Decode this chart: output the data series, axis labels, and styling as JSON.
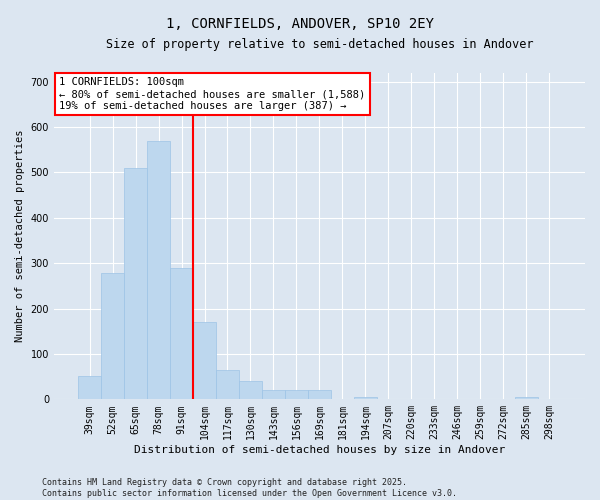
{
  "title": "1, CORNFIELDS, ANDOVER, SP10 2EY",
  "subtitle": "Size of property relative to semi-detached houses in Andover",
  "xlabel": "Distribution of semi-detached houses by size in Andover",
  "ylabel": "Number of semi-detached properties",
  "categories": [
    "39sqm",
    "52sqm",
    "65sqm",
    "78sqm",
    "91sqm",
    "104sqm",
    "117sqm",
    "130sqm",
    "143sqm",
    "156sqm",
    "169sqm",
    "181sqm",
    "194sqm",
    "207sqm",
    "220sqm",
    "233sqm",
    "246sqm",
    "259sqm",
    "272sqm",
    "285sqm",
    "298sqm"
  ],
  "values": [
    52,
    278,
    510,
    568,
    290,
    170,
    65,
    40,
    20,
    20,
    20,
    0,
    5,
    0,
    0,
    0,
    0,
    0,
    0,
    5,
    0
  ],
  "bar_color": "#BDD7EE",
  "bar_edge_color": "#9DC3E6",
  "vline_color": "red",
  "vline_x_index": 4.5,
  "annotation_title": "1 CORNFIELDS: 100sqm",
  "annotation_line1": "← 80% of semi-detached houses are smaller (1,588)",
  "annotation_line2": "19% of semi-detached houses are larger (387) →",
  "ylim": [
    0,
    720
  ],
  "yticks": [
    0,
    100,
    200,
    300,
    400,
    500,
    600,
    700
  ],
  "footnote": "Contains HM Land Registry data © Crown copyright and database right 2025.\nContains public sector information licensed under the Open Government Licence v3.0.",
  "bg_color": "#DCE6F1",
  "plot_bg_color": "#DCE6F1",
  "grid_color": "#FFFFFF",
  "title_fontsize": 10,
  "subtitle_fontsize": 8.5,
  "ylabel_fontsize": 7.5,
  "xlabel_fontsize": 8,
  "tick_fontsize": 7,
  "annot_fontsize": 7.5,
  "footnote_fontsize": 6
}
